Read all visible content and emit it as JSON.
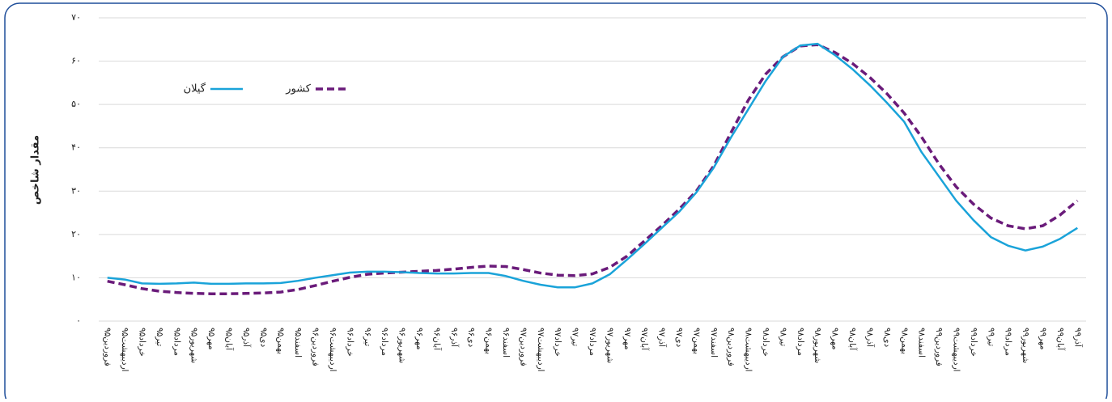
{
  "chart_data": {
    "type": "line",
    "y_label": "مقدار شاخص",
    "categories": [
      "فروردین۹۵",
      "اردیبهشت۹۵",
      "خرداد۹۵",
      "تیر۹۵",
      "مرداد۹۵",
      "شهریور۹۵",
      "مهر۹۵",
      "آبان۹۵",
      "آذر۹۵",
      "دی۹۵",
      "بهمن۹۵",
      "اسفند۹۵",
      "فروردین۹۶",
      "اردیبهشت۹۶",
      "خرداد۹۶",
      "تیر۹۶",
      "مرداد۹۶",
      "شهریور۹۶",
      "مهر۹۶",
      "آبان۹۶",
      "آذر۹۶",
      "دی۹۶",
      "بهمن۹۶",
      "اسفند۹۶",
      "فروردین۹۷",
      "اردیبهشت۹۷",
      "خرداد۹۷",
      "تیر۹۷",
      "مرداد۹۷",
      "شهریور۹۷",
      "مهر۹۷",
      "آبان۹۷",
      "آذر۹۷",
      "دی۹۷",
      "بهمن۹۷",
      "اسفند۹۷",
      "فروردین۹۸",
      "اردیبهشت۹۸",
      "خرداد۹۸",
      "تیر۹۸",
      "مرداد۹۸",
      "شهریور۹۸",
      "مهر۹۸",
      "آبان۹۸",
      "آذر۹۸",
      "دی۹۸",
      "بهمن۹۸",
      "اسفند۹۸",
      "فروردین۹۹",
      "اردیبهشت۹۹",
      "خرداد۹۹",
      "تیر۹۹",
      "مرداد۹۹",
      "شهریور۹۹",
      "مهر۹۹",
      "آبان۹۹",
      "آذر۹۹"
    ],
    "series": [
      {
        "name": "کشور",
        "color": "#6a1b7a",
        "dash": true,
        "values": [
          9.2,
          8.4,
          7.5,
          6.9,
          6.6,
          6.4,
          6.3,
          6.3,
          6.4,
          6.5,
          6.7,
          7.3,
          8.2,
          9.2,
          10.1,
          10.8,
          11.1,
          11.3,
          11.5,
          11.7,
          12.0,
          12.4,
          12.7,
          12.6,
          11.9,
          11.1,
          10.6,
          10.5,
          10.9,
          12.4,
          15.0,
          18.5,
          22.0,
          25.8,
          30.0,
          35.8,
          43.5,
          51.0,
          57.0,
          61.0,
          63.5,
          63.8,
          62.0,
          59.5,
          56.3,
          52.5,
          48.0,
          42.5,
          36.3,
          31.0,
          27.0,
          23.8,
          22.0,
          21.3,
          22.0,
          24.5,
          27.8
        ]
      },
      {
        "name": "گیلان",
        "color": "#1aa3d9",
        "dash": false,
        "values": [
          10.0,
          9.6,
          8.7,
          8.6,
          8.7,
          8.9,
          8.6,
          8.6,
          8.7,
          8.7,
          8.8,
          9.3,
          10.0,
          10.6,
          11.2,
          11.4,
          11.4,
          11.3,
          11.1,
          11.0,
          11.0,
          11.1,
          11.1,
          10.4,
          9.3,
          8.4,
          7.8,
          7.8,
          8.7,
          10.8,
          14.2,
          17.8,
          21.5,
          25.2,
          29.7,
          35.4,
          42.4,
          48.9,
          55.4,
          61.0,
          63.6,
          64.0,
          61.4,
          58.2,
          54.5,
          50.4,
          46.0,
          39.0,
          33.4,
          27.8,
          23.3,
          19.4,
          17.4,
          16.3,
          17.2,
          19.0,
          21.5
        ]
      }
    ],
    "ylim": [
      0,
      70
    ],
    "yticks": [
      {
        "value": 0,
        "label": "۰"
      },
      {
        "value": 10,
        "label": "۱۰"
      },
      {
        "value": 20,
        "label": "۲۰"
      },
      {
        "value": 30,
        "label": "۳۰"
      },
      {
        "value": 40,
        "label": "۴۰"
      },
      {
        "value": 50,
        "label": "۵۰"
      },
      {
        "value": 60,
        "label": "۶۰"
      },
      {
        "value": 70,
        "label": "۷۰"
      }
    ],
    "grid": true,
    "legend": "upper left"
  }
}
